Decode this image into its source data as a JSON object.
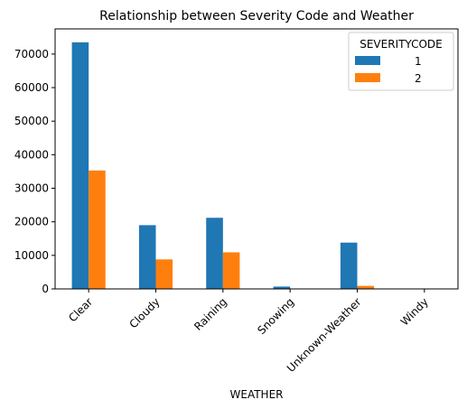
{
  "chart_data": {
    "type": "bar",
    "title": "Relationship between Severity Code and Weather",
    "xlabel": "WEATHER",
    "ylabel": "",
    "categories": [
      "Clear",
      "Cloudy",
      "Raining",
      "Snowing",
      "Unknown-Weather",
      "Windy"
    ],
    "series": [
      {
        "name": "1",
        "color": "#1f77b4",
        "values": [
          73500,
          19000,
          21200,
          700,
          13800,
          50
        ]
      },
      {
        "name": "2",
        "color": "#ff7f0e",
        "values": [
          35300,
          8800,
          10900,
          100,
          900,
          20
        ]
      }
    ],
    "ylim": [
      0,
      77500
    ],
    "yticks": [
      0,
      10000,
      20000,
      30000,
      40000,
      50000,
      60000,
      70000
    ],
    "grid": false,
    "legend": {
      "title": "SEVERITYCODE",
      "placement": "top-right"
    }
  }
}
